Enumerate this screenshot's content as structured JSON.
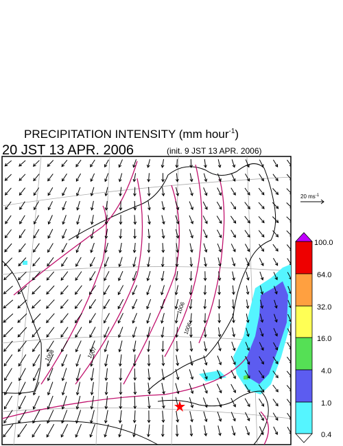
{
  "header": {
    "title": {
      "text": "PRECIPITATION INTENSITY (mm hour",
      "superscript": "-1",
      "closing": ")"
    },
    "valid_time": "20 JST 13 APR. 2006",
    "init_time": "(init. 9 JST 13 APR. 2006)"
  },
  "vector_scale": {
    "text": "20 ms",
    "superscript": "-1"
  },
  "colorbar": {
    "labels": [
      "100.0",
      "64.0",
      "32.0",
      "16.0",
      "4.0",
      "1.0",
      "0.4"
    ]
  },
  "contour_labels": [
    "1008",
    "1007",
    "1006",
    "1006"
  ]
}
